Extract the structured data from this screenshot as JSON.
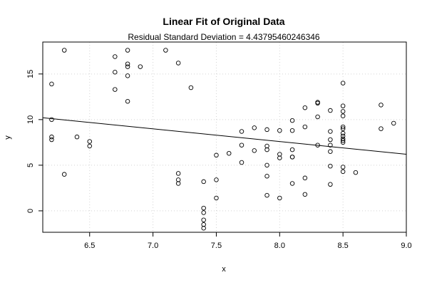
{
  "chart_data": {
    "type": "scatter",
    "title": "Linear Fit of Original Data",
    "subtitle": "Residual Standard Deviation =  4.43795460246346",
    "xlabel": "x",
    "ylabel": "y",
    "xlim": [
      6.13,
      9.0
    ],
    "ylim": [
      -2.35,
      18.5
    ],
    "xticks": [
      6.5,
      7.0,
      7.5,
      8.0,
      8.5,
      9.0
    ],
    "xtick_labels": [
      "6.5",
      "7.0",
      "7.5",
      "8.0",
      "8.5",
      "9.0"
    ],
    "yticks": [
      0,
      5,
      10,
      15
    ],
    "ytick_labels": [
      "0",
      "5",
      "10",
      "15"
    ],
    "grid": true,
    "points": [
      {
        "x": 6.2,
        "y": 13.9
      },
      {
        "x": 6.2,
        "y": 10.0
      },
      {
        "x": 6.2,
        "y": 8.1
      },
      {
        "x": 6.2,
        "y": 7.8
      },
      {
        "x": 6.3,
        "y": 17.6
      },
      {
        "x": 6.3,
        "y": 4.0
      },
      {
        "x": 6.4,
        "y": 8.1
      },
      {
        "x": 6.5,
        "y": 7.6
      },
      {
        "x": 6.5,
        "y": 7.1
      },
      {
        "x": 6.7,
        "y": 16.9
      },
      {
        "x": 6.7,
        "y": 15.2
      },
      {
        "x": 6.7,
        "y": 13.3
      },
      {
        "x": 6.8,
        "y": 17.6
      },
      {
        "x": 6.8,
        "y": 16.1
      },
      {
        "x": 6.8,
        "y": 15.8
      },
      {
        "x": 6.8,
        "y": 14.8
      },
      {
        "x": 6.8,
        "y": 12.0
      },
      {
        "x": 6.9,
        "y": 15.8
      },
      {
        "x": 7.1,
        "y": 17.6
      },
      {
        "x": 7.2,
        "y": 16.2
      },
      {
        "x": 7.2,
        "y": 4.1
      },
      {
        "x": 7.2,
        "y": 3.4
      },
      {
        "x": 7.2,
        "y": 3.0
      },
      {
        "x": 7.3,
        "y": 13.5
      },
      {
        "x": 7.4,
        "y": 3.2
      },
      {
        "x": 7.4,
        "y": 0.3
      },
      {
        "x": 7.4,
        "y": -0.2
      },
      {
        "x": 7.4,
        "y": -1.0
      },
      {
        "x": 7.4,
        "y": -1.5
      },
      {
        "x": 7.4,
        "y": -1.9
      },
      {
        "x": 7.5,
        "y": 6.1
      },
      {
        "x": 7.5,
        "y": 3.4
      },
      {
        "x": 7.5,
        "y": 1.4
      },
      {
        "x": 7.6,
        "y": 6.3
      },
      {
        "x": 7.7,
        "y": 8.7
      },
      {
        "x": 7.7,
        "y": 7.2
      },
      {
        "x": 7.7,
        "y": 5.3
      },
      {
        "x": 7.8,
        "y": 9.1
      },
      {
        "x": 7.8,
        "y": 6.6
      },
      {
        "x": 7.9,
        "y": 8.9
      },
      {
        "x": 7.9,
        "y": 7.1
      },
      {
        "x": 7.9,
        "y": 6.7
      },
      {
        "x": 7.9,
        "y": 5.0
      },
      {
        "x": 7.9,
        "y": 3.8
      },
      {
        "x": 7.9,
        "y": 1.7
      },
      {
        "x": 8.0,
        "y": 8.8
      },
      {
        "x": 8.0,
        "y": 6.2
      },
      {
        "x": 8.0,
        "y": 5.8
      },
      {
        "x": 8.0,
        "y": 1.4
      },
      {
        "x": 8.1,
        "y": 9.9
      },
      {
        "x": 8.1,
        "y": 8.8
      },
      {
        "x": 8.1,
        "y": 6.7
      },
      {
        "x": 8.1,
        "y": 5.9
      },
      {
        "x": 8.1,
        "y": 5.9
      },
      {
        "x": 8.1,
        "y": 3.0
      },
      {
        "x": 8.2,
        "y": 11.3
      },
      {
        "x": 8.2,
        "y": 9.2
      },
      {
        "x": 8.2,
        "y": 3.6
      },
      {
        "x": 8.2,
        "y": 1.8
      },
      {
        "x": 8.3,
        "y": 11.9
      },
      {
        "x": 8.3,
        "y": 11.8
      },
      {
        "x": 8.3,
        "y": 10.3
      },
      {
        "x": 8.3,
        "y": 7.2
      },
      {
        "x": 8.4,
        "y": 11.0
      },
      {
        "x": 8.4,
        "y": 8.7
      },
      {
        "x": 8.4,
        "y": 7.8
      },
      {
        "x": 8.4,
        "y": 7.2
      },
      {
        "x": 8.4,
        "y": 6.5
      },
      {
        "x": 8.4,
        "y": 4.9
      },
      {
        "x": 8.4,
        "y": 2.9
      },
      {
        "x": 8.5,
        "y": 14.0
      },
      {
        "x": 8.5,
        "y": 11.5
      },
      {
        "x": 8.5,
        "y": 10.9
      },
      {
        "x": 8.5,
        "y": 10.4
      },
      {
        "x": 8.5,
        "y": 9.2
      },
      {
        "x": 8.5,
        "y": 9.0
      },
      {
        "x": 8.5,
        "y": 8.5
      },
      {
        "x": 8.5,
        "y": 8.2
      },
      {
        "x": 8.5,
        "y": 7.9
      },
      {
        "x": 8.5,
        "y": 7.7
      },
      {
        "x": 8.5,
        "y": 7.5
      },
      {
        "x": 8.5,
        "y": 4.8
      },
      {
        "x": 8.5,
        "y": 4.3
      },
      {
        "x": 8.6,
        "y": 4.2
      },
      {
        "x": 8.8,
        "y": 11.6
      },
      {
        "x": 8.8,
        "y": 9.0
      },
      {
        "x": 8.9,
        "y": 9.6
      }
    ],
    "fit_line": {
      "x": [
        6.13,
        9.0
      ],
      "y": [
        10.2,
        6.2
      ]
    }
  }
}
